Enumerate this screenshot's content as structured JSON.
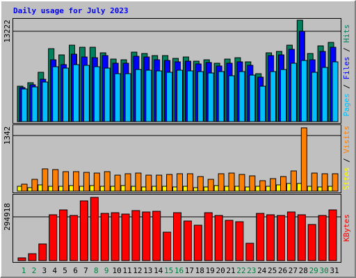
{
  "chart_data": [
    {
      "type": "bar",
      "title": "Daily usage for July 2023",
      "categories": [
        "1",
        "2",
        "3",
        "4",
        "5",
        "6",
        "7",
        "8",
        "9",
        "10",
        "11",
        "12",
        "13",
        "14",
        "15",
        "16",
        "17",
        "18",
        "19",
        "20",
        "21",
        "22",
        "23",
        "24",
        "25",
        "26",
        "27",
        "28",
        "29",
        "30",
        "31"
      ],
      "category_colors": [
        "#008040",
        "#008040",
        "#000000",
        "#000000",
        "#000000",
        "#000000",
        "#000000",
        "#008040",
        "#008040",
        "#000000",
        "#000000",
        "#000000",
        "#000000",
        "#000000",
        "#008040",
        "#008040",
        "#000000",
        "#000000",
        "#000000",
        "#000000",
        "#000000",
        "#008040",
        "#008040",
        "#000000",
        "#000000",
        "#000000",
        "#000000",
        "#000000",
        "#008040",
        "#008040",
        "#000000"
      ],
      "legend_separator": " / ",
      "ylim": [
        0,
        15000
      ],
      "yticks": [
        13222
      ],
      "grid": true,
      "series": [
        {
          "name": "Hits",
          "color": "#00805c",
          "values": [
            5187,
            5695,
            7221,
            10679,
            9763,
            11187,
            10882,
            10882,
            10068,
            9153,
            9051,
            10170,
            9967,
            9662,
            9662,
            9255,
            9458,
            8848,
            9051,
            8543,
            9153,
            9356,
            8746,
            7017,
            10068,
            10272,
            11187,
            14848,
            9967,
            11086,
            11594
          ]
        },
        {
          "name": "Files",
          "color": "#0000ff",
          "values": [
            4983,
            5390,
            6204,
            9051,
            8339,
            9865,
            9458,
            9356,
            9662,
            8543,
            8543,
            9560,
            9458,
            9051,
            8950,
            8746,
            8848,
            8441,
            8645,
            8136,
            8543,
            8746,
            8238,
            6509,
            9662,
            9763,
            10577,
            13222,
            9051,
            10272,
            10882
          ]
        },
        {
          "name": "Pages",
          "color": "#00c0ff",
          "values": [
            4780,
            5085,
            5797,
            8034,
            7831,
            8339,
            8238,
            8034,
            7831,
            7017,
            7017,
            7628,
            7526,
            7424,
            7221,
            7526,
            7424,
            7322,
            7119,
            7322,
            6712,
            7322,
            6814,
            5187,
            7322,
            7628,
            8543,
            8950,
            7221,
            7933,
            8746
          ]
        }
      ]
    },
    {
      "type": "bar",
      "ylim": [
        0,
        1600
      ],
      "yticks": [
        1342
      ],
      "grid": true,
      "legend_separator": " / ",
      "series": [
        {
          "name": "Visits",
          "color": "#ff8000",
          "values": [
            168,
            285,
            537,
            520,
            470,
            470,
            453,
            436,
            470,
            386,
            420,
            436,
            386,
            386,
            403,
            420,
            420,
            352,
            285,
            420,
            436,
            403,
            369,
            252,
            302,
            352,
            487,
            1527,
            436,
            420,
            420
          ]
        },
        {
          "name": "Sites",
          "color": "#ffff00",
          "values": [
            117,
            84,
            151,
            117,
            117,
            134,
            117,
            134,
            117,
            117,
            134,
            117,
            101,
            117,
            117,
            101,
            117,
            84,
            101,
            134,
            117,
            117,
            101,
            117,
            117,
            151,
            185,
            185,
            117,
            101,
            117
          ]
        }
      ]
    },
    {
      "type": "bar",
      "ylim": [
        0,
        440000
      ],
      "yticks": [
        294918
      ],
      "grid": true,
      "series": [
        {
          "name": "KBytes",
          "color": "#ff0000",
          "values": [
            18725,
            46810,
            112344,
            308950,
            341718,
            304269,
            402570,
            425976,
            318312,
            322993,
            313631,
            337037,
            327674,
            332355,
            191924,
            322993,
            266822,
            238737,
            322993,
            304269,
            271503,
            262141,
            117025,
            318312,
            308950,
            304269,
            327674,
            308950,
            243418,
            304269,
            341718
          ]
        }
      ]
    }
  ]
}
